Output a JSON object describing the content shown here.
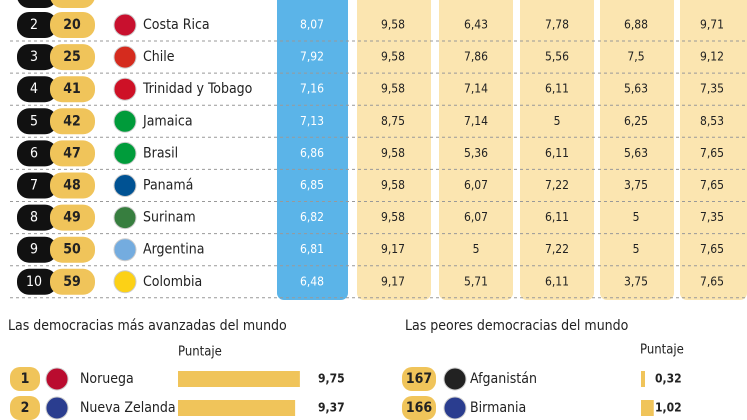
{
  "table": {
    "rows": [
      [
        "2",
        "20",
        "Costa Rica",
        "8,07",
        "9,58",
        "6,43",
        "7,78",
        "6,88",
        "9,71"
      ],
      [
        "3",
        "25",
        "Chile",
        "7,92",
        "9,58",
        "7,86",
        "5,56",
        "7,5",
        "9,12"
      ],
      [
        "4",
        "41",
        "Trinidad y Tobago",
        "7,16",
        "9,58",
        "7,14",
        "6,11",
        "5,63",
        "7,35"
      ],
      [
        "5",
        "42",
        "Jamaica",
        "7,13",
        "8,75",
        "7,14",
        "5",
        "6,25",
        "8,53"
      ],
      [
        "6",
        "47",
        "Brasil",
        "6,86",
        "9,58",
        "5,36",
        "6,11",
        "5,63",
        "7,65"
      ],
      [
        "7",
        "48",
        "Panamá",
        "6,85",
        "9,58",
        "6,07",
        "7,22",
        "3,75",
        "7,65"
      ],
      [
        "8",
        "49",
        "Surinam",
        "6,82",
        "9,58",
        "6,07",
        "6,11",
        "5",
        "7,35"
      ],
      [
        "9",
        "50",
        "Argentina",
        "6,81",
        "9,17",
        "5",
        "7,22",
        "5",
        "7,65"
      ],
      [
        "10",
        "59",
        "Colombia",
        "6,48",
        "9,17",
        "5,71",
        "6,11",
        "3,75",
        "7,65"
      ]
    ]
  },
  "best": {
    "title": "Las democracias más avanzadas del mundo",
    "axis_label": "Puntaje",
    "max": 10,
    "rows": [
      {
        "rank": "1",
        "country": "Noruega",
        "value": 9.75,
        "label": "9,75"
      },
      {
        "rank": "2",
        "country": "Nueva Zelanda",
        "value": 9.37,
        "label": "9,37"
      }
    ]
  },
  "worst": {
    "title": "Las peores democracias del mundo",
    "axis_label": "Puntaje",
    "max": 10,
    "rows": [
      {
        "rank": "167",
        "country": "Afganistán",
        "value": 0.32,
        "label": "0,32"
      },
      {
        "rank": "166",
        "country": "Birmania",
        "value": 1.02,
        "label": "1,02"
      }
    ]
  }
}
